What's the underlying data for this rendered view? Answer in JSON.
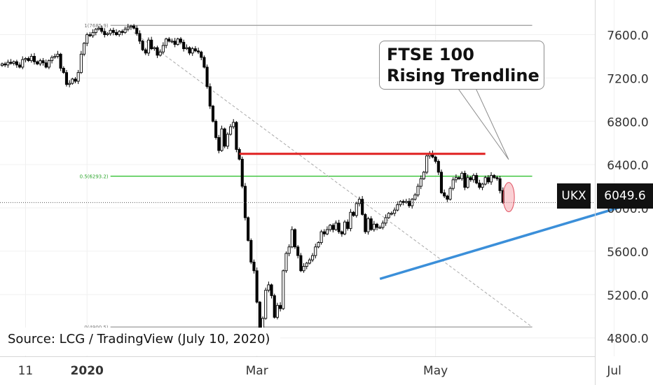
{
  "chart_data": {
    "type": "candlestick",
    "symbol": "UKX",
    "last_price": "6049.6",
    "y_ticks": [
      "7600.0",
      "7200.0",
      "6800.0",
      "6400.0",
      "6000.0",
      "5600.0",
      "5200.0",
      "4800.0"
    ],
    "y_tick_values": [
      7600,
      7200,
      6800,
      6400,
      6000,
      5600,
      5200,
      4800
    ],
    "ylim": [
      4630,
      7920
    ],
    "x_ticks": [
      {
        "label": "11",
        "day": 8,
        "bold": false
      },
      {
        "label": "2020",
        "day": 29,
        "bold": true
      },
      {
        "label": "Mar",
        "day": 87,
        "bold": false
      },
      {
        "label": "May",
        "day": 148,
        "bold": false
      },
      {
        "label": "Jul",
        "day": 209,
        "bold": false
      }
    ],
    "fib_levels": [
      {
        "label": "1(7685.9)",
        "value": 7685.9
      },
      {
        "label": "0.5(6293.2)",
        "value": 6293.2
      },
      {
        "label": "0(4900.5)",
        "value": 4900.5
      }
    ],
    "resistance": 6500,
    "trendline": {
      "from": [
        5345,
        129
      ],
      "to": [
        6135,
        227
      ]
    },
    "colors": {
      "up": "#ffffff",
      "down": "#000000",
      "resistance": "#e02020",
      "trend": "#3b8fd9",
      "fib_mid": "#35c135",
      "fib": "#9a9a9a"
    },
    "candle_closes": [
      7330,
      7320,
      7345,
      7335,
      7350,
      7320,
      7300,
      7370,
      7380,
      7360,
      7400,
      7350,
      7330,
      7360,
      7340,
      7300,
      7360,
      7390,
      7400,
      7420,
      7290,
      7250,
      7140,
      7150,
      7190,
      7170,
      7250,
      7420,
      7520,
      7600,
      7590,
      7620,
      7650,
      7660,
      7630,
      7600,
      7610,
      7640,
      7620,
      7600,
      7630,
      7620,
      7650,
      7670,
      7680,
      7660,
      7610,
      7540,
      7460,
      7430,
      7550,
      7470,
      7480,
      7410,
      7440,
      7500,
      7560,
      7540,
      7540,
      7510,
      7560,
      7530,
      7470,
      7480,
      7430,
      7470,
      7450,
      7440,
      7390,
      7300,
      7120,
      6940,
      6800,
      6650,
      6530,
      6730,
      6570,
      6680,
      6750,
      6790,
      6540,
      6450,
      6200,
      5910,
      5700,
      5500,
      5420,
      5130,
      4800,
      4980,
      5240,
      5290,
      5190,
      4990,
      5100,
      5070,
      5420,
      5580,
      5640,
      5800,
      5640,
      5560,
      5420,
      5460,
      5490,
      5520,
      5560,
      5640,
      5680,
      5780,
      5760,
      5800,
      5840,
      5800,
      5860,
      5780,
      5760,
      5870,
      5810,
      5960,
      5930,
      6040,
      6080,
      5940,
      5780,
      5900,
      5800,
      5850,
      5820,
      5820,
      5860,
      5910,
      5950,
      5950,
      5980,
      6030,
      6060,
      6050,
      6060,
      6020,
      6080,
      6120,
      6200,
      6270,
      6330,
      6480,
      6500,
      6470,
      6430,
      6330,
      6140,
      6110,
      6080,
      6180,
      6260,
      6280,
      6270,
      6320,
      6190,
      6280,
      6260,
      6300,
      6230,
      6190,
      6220,
      6280,
      6240,
      6300,
      6280,
      6270,
      6160,
      6050
    ]
  },
  "annotation": {
    "line1": "FTSE 100",
    "line2": "Rising Trendline"
  },
  "source": "Source: LCG / TradingView (July 10, 2020)"
}
